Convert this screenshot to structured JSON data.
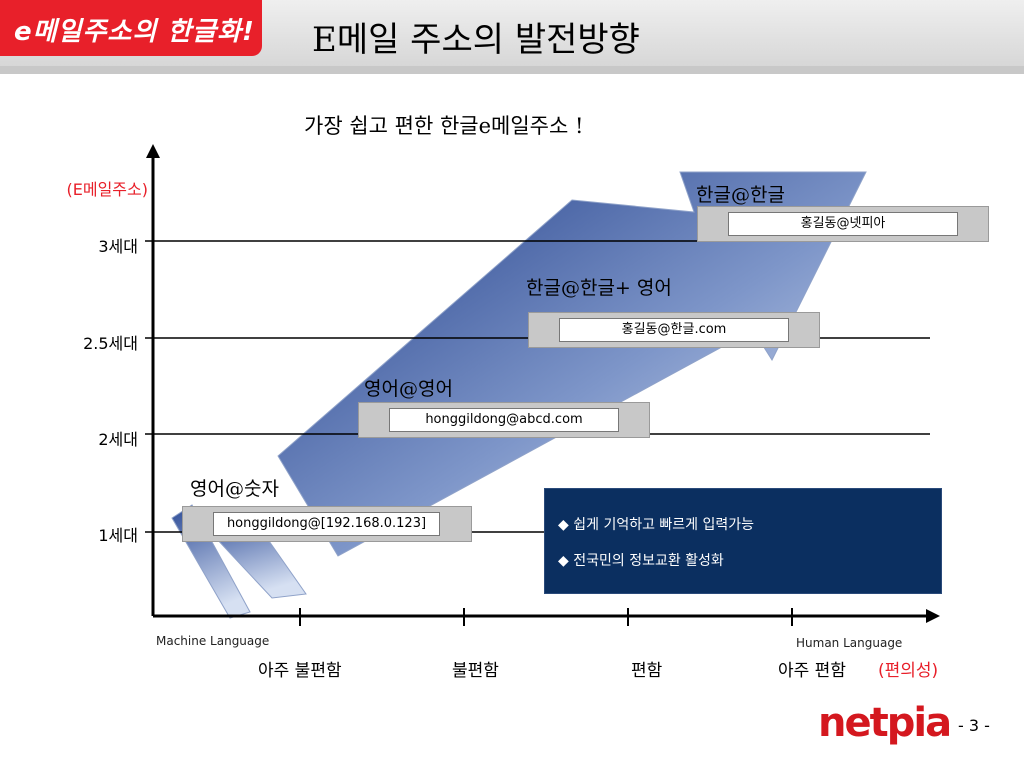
{
  "header": {
    "badge": "e메일주소의 한글화!",
    "title": "E메일 주소의 발전방향"
  },
  "subtitle": "가장 쉽고 편한 한글e메일주소 !",
  "y_axis": {
    "label": "(E메일주소)",
    "ticks": [
      "3세대",
      "2.5세대",
      "2세대",
      "1세대"
    ]
  },
  "x_axis": {
    "left_caption": "Machine Language",
    "right_caption": "Human Language",
    "ticks": [
      "아주 불편함",
      "불편함",
      "편함",
      "아주 편함"
    ],
    "suffix": "(편의성)"
  },
  "generations": [
    {
      "label": "영어@숫자",
      "address": "honggildong@[192.168.0.123]"
    },
    {
      "label": "영어@영어",
      "address": "honggildong@abcd.com"
    },
    {
      "label": "한글@한글+ 영어",
      "address": "홍길동@한글.com"
    },
    {
      "label": "한글@한글",
      "address": "홍길동@넷피아"
    }
  ],
  "info": {
    "items": [
      "쉽게 기억하고 빠르게 입력가능",
      "전국민의 정보교환 활성화"
    ],
    "bullet": "◆"
  },
  "footer": {
    "logo": "netpia",
    "page": "- 3 -"
  },
  "colors": {
    "accent_red": "#e8202a",
    "arrow_dark": "#1d3a86",
    "arrow_light": "#dbe4f3",
    "info_bg": "#0b2f60"
  }
}
